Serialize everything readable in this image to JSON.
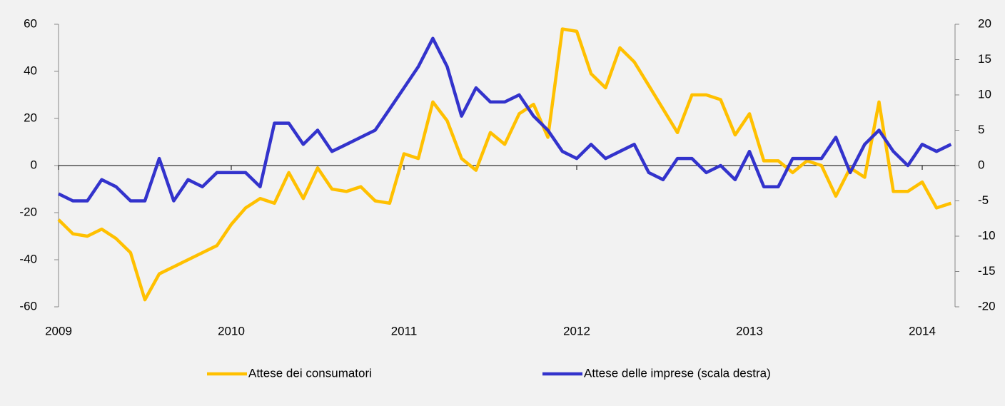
{
  "chart_data": {
    "type": "line",
    "x": [
      2009,
      2009.083,
      2009.167,
      2009.25,
      2009.333,
      2009.417,
      2009.5,
      2009.583,
      2009.667,
      2009.75,
      2009.833,
      2009.917,
      2010,
      2010.083,
      2010.167,
      2010.25,
      2010.333,
      2010.417,
      2010.5,
      2010.583,
      2010.667,
      2010.75,
      2010.833,
      2010.917,
      2011,
      2011.083,
      2011.167,
      2011.25,
      2011.333,
      2011.417,
      2011.5,
      2011.583,
      2011.667,
      2011.75,
      2011.833,
      2011.917,
      2012,
      2012.083,
      2012.167,
      2012.25,
      2012.333,
      2012.417,
      2012.5,
      2012.583,
      2012.667,
      2012.75,
      2012.833,
      2012.917,
      2013,
      2013.083,
      2013.167,
      2013.25,
      2013.333,
      2013.417,
      2013.5,
      2013.583,
      2013.667,
      2013.75,
      2013.833,
      2013.917,
      2014,
      2014.083,
      2014.167
    ],
    "xlim": [
      2009,
      2014.19
    ],
    "xticks": [
      2009,
      2010,
      2011,
      2012,
      2013,
      2014
    ],
    "ylim": [
      -60,
      60
    ],
    "yticks": [
      -60,
      -40,
      -20,
      0,
      20,
      40,
      60
    ],
    "y2lim": [
      -20,
      20
    ],
    "y2ticks": [
      -20,
      -15,
      -10,
      -5,
      0,
      5,
      10,
      15,
      20
    ],
    "series": [
      {
        "name": "Attese dei consumatori",
        "color": "#ffc000",
        "values": [
          -23,
          -29,
          -30,
          -27,
          -31,
          -37,
          -57,
          -46,
          -43,
          -40,
          -37,
          -34,
          -25,
          -18,
          -14,
          -16,
          -3,
          -14,
          -1,
          -10,
          -11,
          -9,
          -15,
          -16,
          5,
          3,
          27,
          19,
          3,
          -2,
          14,
          9,
          22,
          26,
          12,
          58,
          57,
          39,
          33,
          50,
          44,
          34,
          24,
          14,
          30,
          30,
          28,
          13,
          22,
          2,
          2,
          -3,
          2,
          0,
          -13,
          -1,
          -5,
          27,
          -11,
          -11,
          -7,
          -18,
          -16
        ]
      },
      {
        "name": "Attese delle imprese (scala destra)",
        "color": "#3333cc",
        "axis": "y2",
        "values": [
          -4,
          -5,
          -5,
          -2,
          -3,
          -5,
          -5,
          1,
          -5,
          -2,
          -3,
          -1,
          -1,
          -1,
          -3,
          6,
          6,
          3,
          5,
          2,
          3,
          4,
          5,
          8,
          11,
          14,
          18,
          14,
          7,
          11,
          9,
          9,
          10,
          7,
          5,
          2,
          1,
          3,
          1,
          2,
          3,
          -1,
          -2,
          1,
          1,
          -1,
          0,
          -2,
          2,
          -3,
          -3,
          1,
          1,
          1,
          4,
          -1,
          3,
          5,
          2,
          0,
          3,
          2,
          3
        ]
      }
    ]
  }
}
